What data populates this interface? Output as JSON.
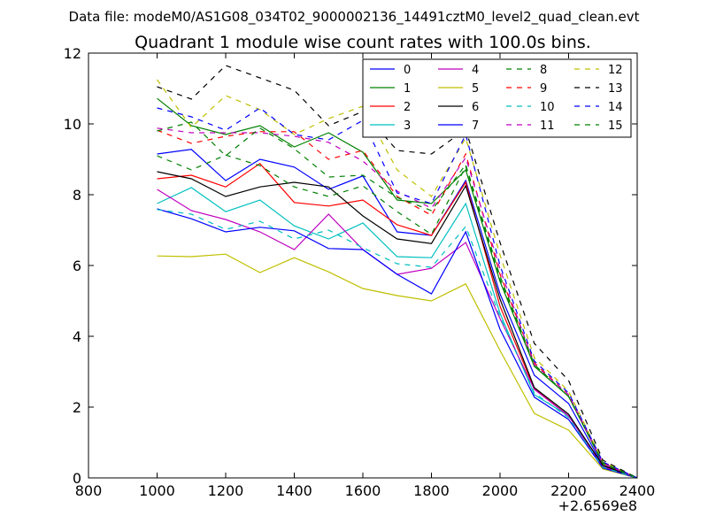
{
  "chart_data": {
    "type": "line",
    "suptitle": "Data file: modeM0/AS1G08_034T02_9000002136_14491cztM0_level2_quad_clean.evt",
    "title": "Quadrant 1 module wise count rates with 100.0s bins.",
    "xlabel": "",
    "ylabel": "",
    "x_offset_label": "+2.6569e8",
    "xlim": [
      800,
      2400
    ],
    "ylim": [
      0,
      12
    ],
    "xticks": [
      800,
      1000,
      1200,
      1400,
      1600,
      1800,
      2000,
      2200,
      2400
    ],
    "yticks": [
      0,
      2,
      4,
      6,
      8,
      10,
      12
    ],
    "grid": false,
    "legend_position": "top-right",
    "x": [
      1000,
      1100,
      1200,
      1300,
      1400,
      1500,
      1600,
      1700,
      1800,
      1900,
      2000,
      2100,
      2200,
      2300,
      2400
    ],
    "series": [
      {
        "name": "0",
        "color": "#0000ff",
        "dash": false,
        "values": [
          9.15,
          9.28,
          8.4,
          9.0,
          8.78,
          8.15,
          8.53,
          6.95,
          6.85,
          8.4,
          5.2,
          2.9,
          2.1,
          0.35,
          0.0
        ]
      },
      {
        "name": "1",
        "color": "#008000",
        "dash": false,
        "values": [
          10.72,
          9.95,
          9.7,
          9.95,
          9.35,
          9.75,
          9.2,
          7.85,
          7.75,
          8.7,
          5.55,
          3.15,
          2.3,
          0.4,
          0.0
        ]
      },
      {
        "name": "2",
        "color": "#ff0000",
        "dash": false,
        "values": [
          8.45,
          8.55,
          8.22,
          8.88,
          7.78,
          7.68,
          7.85,
          7.15,
          6.85,
          8.35,
          4.85,
          2.52,
          1.75,
          0.35,
          0.0
        ]
      },
      {
        "name": "3",
        "color": "#00bfbf",
        "dash": false,
        "values": [
          7.75,
          8.2,
          7.52,
          7.85,
          7.12,
          6.75,
          7.2,
          6.25,
          6.22,
          7.75,
          4.65,
          2.35,
          1.75,
          0.3,
          0.0
        ]
      },
      {
        "name": "4",
        "color": "#bf00bf",
        "dash": false,
        "values": [
          8.15,
          7.55,
          7.3,
          6.95,
          6.45,
          7.45,
          6.45,
          5.75,
          5.92,
          6.65,
          4.5,
          2.5,
          1.75,
          0.32,
          0.0
        ]
      },
      {
        "name": "5",
        "color": "#bfbf00",
        "dash": false,
        "values": [
          6.27,
          6.25,
          6.32,
          5.8,
          6.22,
          5.82,
          5.35,
          5.15,
          5.0,
          5.48,
          3.6,
          1.82,
          1.35,
          0.25,
          0.0
        ]
      },
      {
        "name": "6",
        "color": "#000000",
        "dash": false,
        "values": [
          8.65,
          8.45,
          7.95,
          8.22,
          8.35,
          8.22,
          7.4,
          6.75,
          6.62,
          8.25,
          5.05,
          2.55,
          1.8,
          0.35,
          0.0
        ]
      },
      {
        "name": "7",
        "color": "#0000ff",
        "dash": false,
        "values": [
          7.6,
          7.32,
          6.95,
          7.08,
          6.98,
          6.48,
          6.45,
          5.75,
          5.2,
          6.95,
          4.2,
          2.28,
          1.65,
          0.28,
          0.0
        ]
      },
      {
        "name": "8",
        "color": "#008000",
        "dash": true,
        "values": [
          9.1,
          8.7,
          9.12,
          8.82,
          8.22,
          7.95,
          8.25,
          7.52,
          6.88,
          8.8,
          5.6,
          3.2,
          2.3,
          0.4,
          0.0
        ]
      },
      {
        "name": "9",
        "color": "#ff0000",
        "dash": true,
        "values": [
          9.82,
          9.45,
          9.65,
          9.78,
          9.78,
          9.0,
          9.25,
          7.95,
          7.42,
          9.15,
          5.75,
          3.25,
          2.35,
          0.42,
          0.0
        ]
      },
      {
        "name": "10",
        "color": "#00bfbf",
        "dash": true,
        "values": [
          7.58,
          7.45,
          7.02,
          7.25,
          6.75,
          7.0,
          6.5,
          6.05,
          5.95,
          7.1,
          4.55,
          2.4,
          1.7,
          0.3,
          0.0
        ]
      },
      {
        "name": "11",
        "color": "#bf00bf",
        "dash": true,
        "values": [
          9.88,
          9.75,
          9.75,
          9.75,
          9.65,
          9.48,
          8.95,
          8.1,
          7.62,
          9.05,
          5.9,
          3.2,
          2.35,
          0.4,
          0.0
        ]
      },
      {
        "name": "12",
        "color": "#bfbf00",
        "dash": true,
        "values": [
          11.25,
          9.9,
          10.8,
          10.4,
          9.7,
          10.15,
          10.5,
          8.7,
          7.95,
          9.6,
          6.3,
          3.4,
          2.45,
          0.45,
          0.0
        ]
      },
      {
        "name": "13",
        "color": "#000000",
        "dash": true,
        "values": [
          11.05,
          10.7,
          11.65,
          11.3,
          10.95,
          9.95,
          10.35,
          9.25,
          9.15,
          9.85,
          6.65,
          3.8,
          2.75,
          0.5,
          0.0
        ]
      },
      {
        "name": "14",
        "color": "#0000ff",
        "dash": true,
        "values": [
          10.45,
          10.2,
          9.82,
          10.45,
          9.7,
          9.55,
          10.1,
          8.05,
          7.75,
          9.7,
          6.0,
          3.3,
          2.4,
          0.45,
          0.0
        ]
      },
      {
        "name": "15",
        "color": "#008000",
        "dash": true,
        "values": [
          9.8,
          10.05,
          9.1,
          9.88,
          9.3,
          8.5,
          8.55,
          7.92,
          7.55,
          8.85,
          5.7,
          3.2,
          2.3,
          0.42,
          0.0
        ]
      }
    ]
  }
}
